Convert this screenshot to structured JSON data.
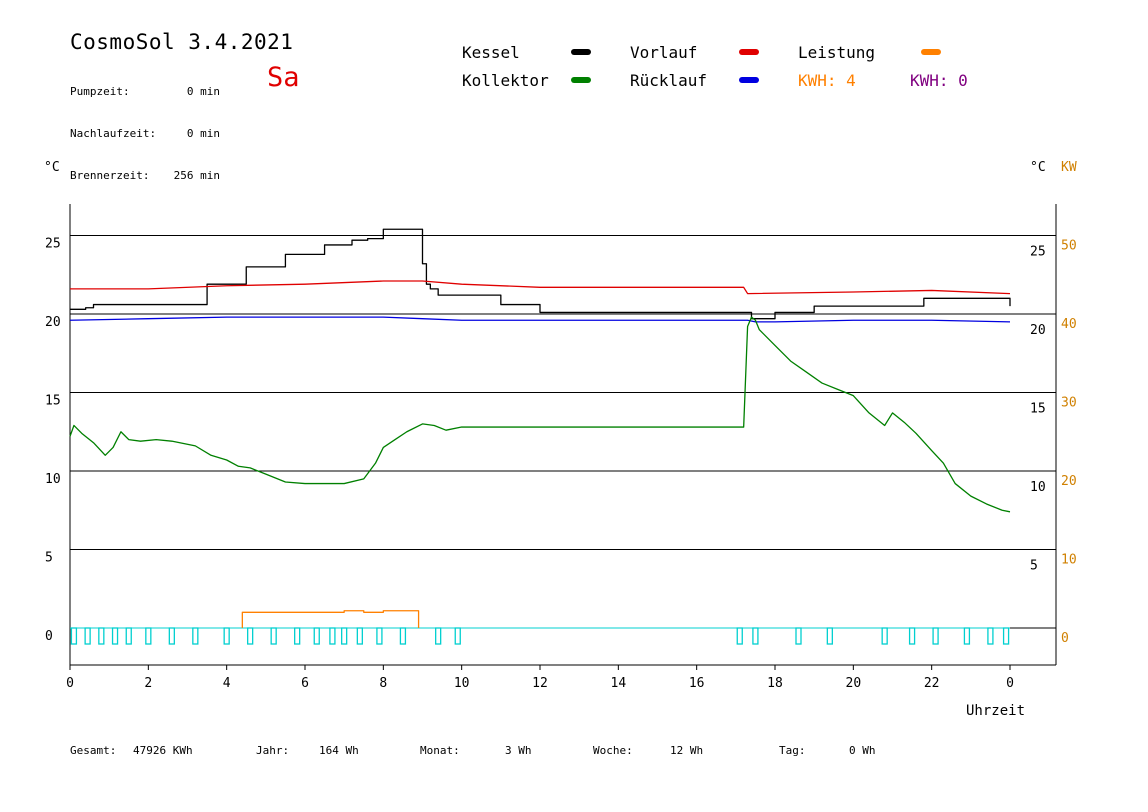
{
  "header": {
    "title": "CosmoSol 3.4.2021",
    "day": "Sa",
    "info": [
      {
        "label": "Pumpzeit:",
        "value": "0 min"
      },
      {
        "label": "Nachlaufzeit:",
        "value": "0 min"
      },
      {
        "label": "Brennerzeit:",
        "value": "256 min"
      }
    ]
  },
  "legend": {
    "kessel": "Kessel",
    "kollektor": "Kollektor",
    "vorlauf": "Vorlauf",
    "ruecklauf": "Rücklauf",
    "leistung": "Leistung",
    "kwh1": "KWH: 4",
    "kwh2": "KWH: 0"
  },
  "colors": {
    "kessel": "#000000",
    "kollektor": "#008000",
    "vorlauf": "#e00000",
    "ruecklauf": "#0000e0",
    "leistung": "#ff8000",
    "kwh2": "#800080",
    "pump": "#00d0d0"
  },
  "footer": {
    "gesamt_label": "Gesamt:",
    "gesamt": "47926 KWh",
    "jahr_label": "Jahr:",
    "jahr": "164 Wh",
    "monat_label": "Monat:",
    "monat": "3 Wh",
    "woche_label": "Woche:",
    "woche": "12 Wh",
    "tag_label": "Tag:",
    "tag": "0 Wh"
  },
  "chart_data": {
    "type": "line",
    "xlabel": "Uhrzeit",
    "ylabel_left": "°C",
    "ylabel_right": "°C",
    "ylabel_right2": "KW",
    "xlim": [
      0,
      24
    ],
    "ylim": [
      -2,
      27
    ],
    "x_ticks": [
      "0",
      "2",
      "4",
      "6",
      "8",
      "10",
      "12",
      "14",
      "16",
      "18",
      "20",
      "22",
      "0"
    ],
    "y_ticks_left": [
      "0",
      "5",
      "10",
      "15",
      "20",
      "25"
    ],
    "y_ticks_right": [
      "5",
      "10",
      "15",
      "20",
      "25"
    ],
    "kw_ticks": [
      "0",
      "10",
      "20",
      "30",
      "40",
      "50"
    ],
    "grid": true,
    "series": [
      {
        "name": "Kessel",
        "x": [
          0,
          0.4,
          0.6,
          2.5,
          3.5,
          4.5,
          5.5,
          6.5,
          7.2,
          7.6,
          8.0,
          8.5,
          8.9,
          9.0,
          9.1,
          9.2,
          9.4,
          10.0,
          11.0,
          12.0,
          14.0,
          17.0,
          17.4,
          18.0,
          19.0,
          20.0,
          21.5,
          21.8,
          22.0,
          24.0
        ],
        "y": [
          20.3,
          20.4,
          20.6,
          20.6,
          21.9,
          23.0,
          23.8,
          24.4,
          24.7,
          24.8,
          25.4,
          25.4,
          25.4,
          23.2,
          21.9,
          21.6,
          21.2,
          21.2,
          20.6,
          20.1,
          20.1,
          20.1,
          19.7,
          20.1,
          20.5,
          20.5,
          20.5,
          21.0,
          21.0,
          20.5
        ]
      },
      {
        "name": "Vorlauf",
        "x": [
          0,
          2,
          4,
          6,
          8,
          9,
          10,
          12,
          14,
          17.2,
          17.3,
          20,
          22,
          24
        ],
        "y": [
          21.6,
          21.6,
          21.8,
          21.9,
          22.1,
          22.1,
          21.9,
          21.7,
          21.7,
          21.7,
          21.3,
          21.4,
          21.5,
          21.3
        ]
      },
      {
        "name": "Rücklauf",
        "x": [
          0,
          2,
          4,
          6,
          8,
          9,
          10,
          12,
          14,
          17.3,
          17.5,
          18,
          20,
          22,
          24
        ],
        "y": [
          19.6,
          19.7,
          19.8,
          19.8,
          19.8,
          19.7,
          19.6,
          19.6,
          19.6,
          19.6,
          19.5,
          19.5,
          19.6,
          19.6,
          19.5
        ]
      },
      {
        "name": "Kollektor",
        "x": [
          0,
          0.1,
          0.3,
          0.6,
          0.9,
          1.1,
          1.3,
          1.5,
          1.8,
          2.2,
          2.6,
          3.2,
          3.6,
          4.0,
          4.3,
          4.6,
          5.0,
          5.5,
          6.0,
          6.5,
          7.0,
          7.5,
          7.8,
          8.0,
          8.3,
          8.6,
          9.0,
          9.3,
          9.6,
          10.0,
          12,
          14,
          16,
          17.2,
          17.3,
          17.4,
          17.5,
          17.6,
          18,
          18.4,
          18.8,
          19.2,
          19.6,
          20.0,
          20.4,
          20.8,
          21.0,
          21.3,
          21.6,
          22.0,
          22.3,
          22.6,
          23.0,
          23.4,
          23.8,
          24.0
        ],
        "y": [
          12.2,
          12.9,
          12.4,
          11.8,
          11.0,
          11.5,
          12.5,
          12.0,
          11.9,
          12.0,
          11.9,
          11.6,
          11.0,
          10.7,
          10.3,
          10.2,
          9.8,
          9.3,
          9.2,
          9.2,
          9.2,
          9.5,
          10.5,
          11.5,
          12.0,
          12.5,
          13.0,
          12.9,
          12.6,
          12.8,
          12.8,
          12.8,
          12.8,
          12.8,
          19.2,
          19.8,
          19.6,
          19.0,
          18.0,
          17.0,
          16.3,
          15.6,
          15.2,
          14.8,
          13.7,
          12.9,
          13.7,
          13.1,
          12.4,
          11.3,
          10.5,
          9.2,
          8.4,
          7.9,
          7.5,
          7.4
        ]
      },
      {
        "name": "Leistung",
        "x": [
          4.4,
          5.0,
          6.0,
          7.0,
          7.5,
          8.0,
          8.5,
          8.9
        ],
        "y": [
          1.0,
          1.0,
          1.0,
          1.1,
          1.0,
          1.1,
          1.1,
          1.1
        ]
      }
    ],
    "pump_cycles": [
      0.1,
      0.45,
      0.8,
      1.15,
      1.5,
      2.0,
      2.6,
      3.2,
      4.0,
      4.6,
      5.2,
      5.8,
      6.3,
      6.7,
      7.0,
      7.4,
      7.9,
      8.5,
      9.4,
      9.9,
      17.1,
      17.5,
      18.6,
      19.4,
      20.8,
      21.5,
      22.1,
      22.9,
      23.5,
      23.9
    ]
  }
}
